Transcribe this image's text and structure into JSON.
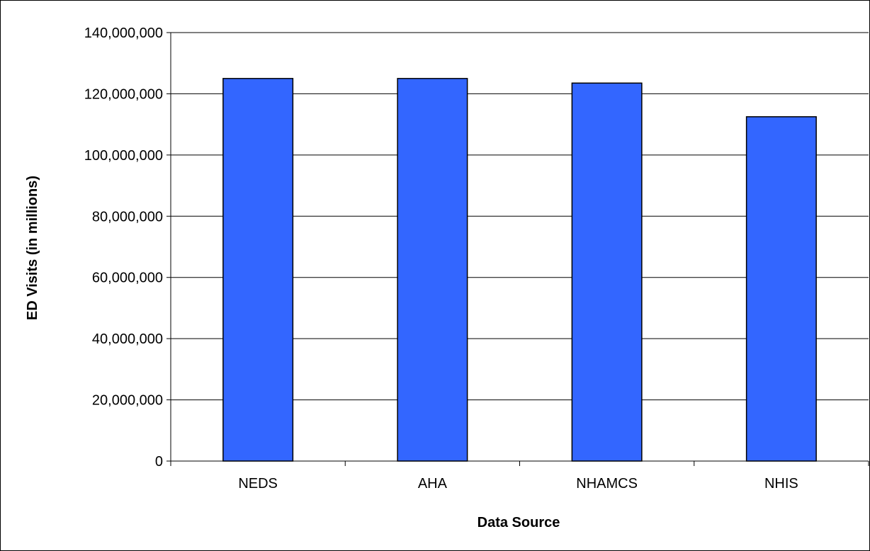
{
  "chart_data": {
    "type": "bar",
    "title": "",
    "xlabel": "Data Source",
    "ylabel": "ED Visits (in millions)",
    "categories": [
      "NEDS",
      "AHA",
      "NHAMCS",
      "NHIS"
    ],
    "values": [
      125000000,
      125000000,
      123500000,
      112500000
    ],
    "ylim": [
      0,
      140000000
    ],
    "y_ticks": [
      0,
      20000000,
      40000000,
      60000000,
      80000000,
      100000000,
      120000000,
      140000000
    ],
    "y_tick_labels": [
      "0",
      "20,000,000",
      "40,000,000",
      "60,000,000",
      "80,000,000",
      "100,000,000",
      "120,000,000",
      "140,000,000"
    ],
    "grid": "horizontal",
    "legend": "none",
    "colors": {
      "bar_fill": "#3366FF",
      "bar_stroke": "#000000",
      "gridline": "#000000"
    }
  }
}
